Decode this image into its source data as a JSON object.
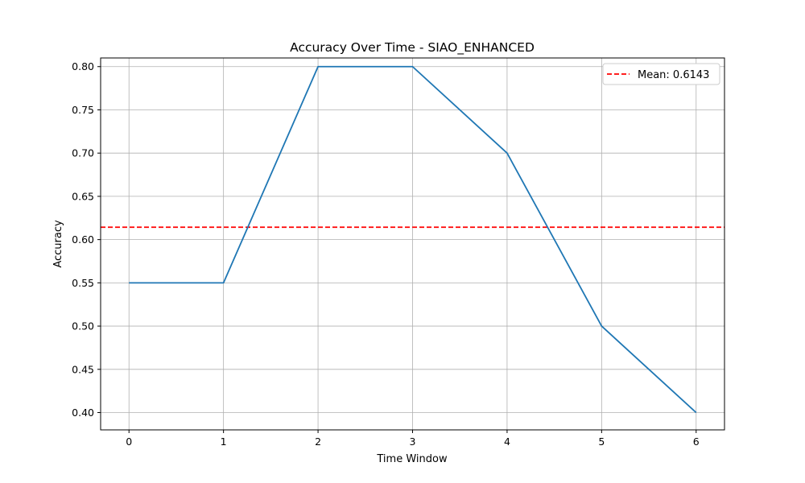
{
  "chart_data": {
    "type": "line",
    "title": "Accuracy Over Time - SIAO_ENHANCED",
    "xlabel": "Time Window",
    "ylabel": "Accuracy",
    "x": [
      0,
      1,
      2,
      3,
      4,
      5,
      6
    ],
    "series": [
      {
        "values": [
          0.55,
          0.55,
          0.8,
          0.8,
          0.7,
          0.5,
          0.4
        ],
        "color": "#1f77b4"
      }
    ],
    "reference_line": {
      "value": 0.6143,
      "label": "Mean: 0.6143",
      "color": "#ff0000",
      "style": "dashed"
    },
    "xlim": [
      -0.3,
      6.3
    ],
    "ylim": [
      0.38,
      0.81
    ],
    "x_ticks": [
      0,
      1,
      2,
      3,
      4,
      5,
      6
    ],
    "x_tick_labels": [
      "0",
      "1",
      "2",
      "3",
      "4",
      "5",
      "6"
    ],
    "y_ticks": [
      0.4,
      0.45,
      0.5,
      0.55,
      0.6,
      0.65,
      0.7,
      0.75,
      0.8
    ],
    "y_tick_labels": [
      "0.40",
      "0.45",
      "0.50",
      "0.55",
      "0.60",
      "0.65",
      "0.70",
      "0.75",
      "0.80"
    ],
    "grid": true,
    "legend_position": "top-right"
  }
}
